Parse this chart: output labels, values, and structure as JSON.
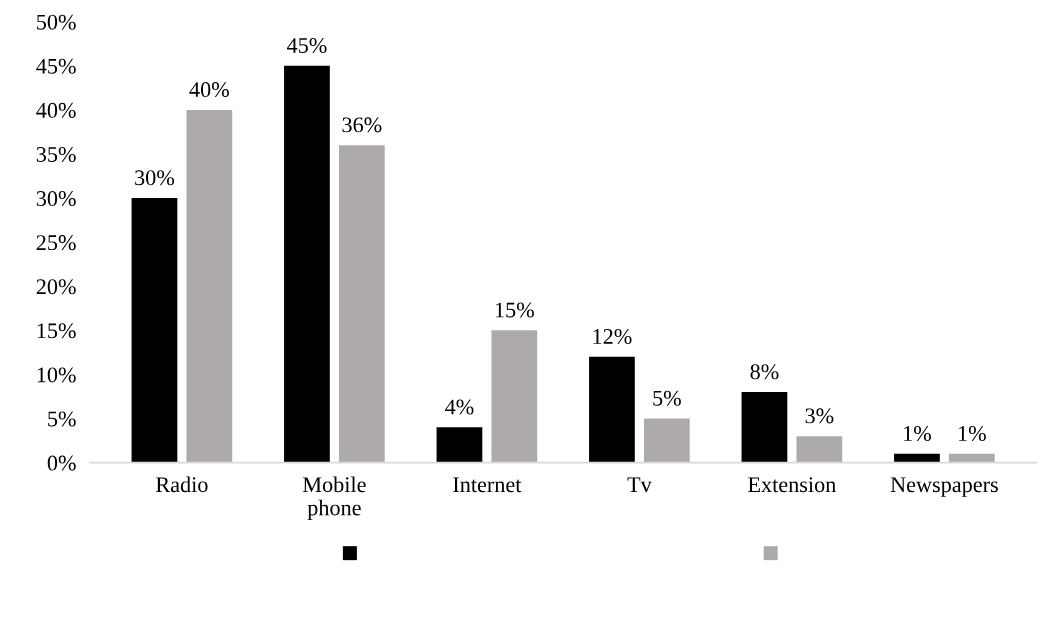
{
  "chart_data": {
    "type": "bar",
    "categories": [
      "Radio",
      "Mobile\nphone",
      "Internet",
      "Tv",
      "Extension",
      "Newspapers"
    ],
    "series": [
      {
        "color": "#000000",
        "values": [
          30,
          45,
          4,
          12,
          8,
          1
        ],
        "value_labels": [
          "30%",
          "45%",
          "4%",
          "12%",
          "8%",
          "1%"
        ]
      },
      {
        "color": "#aeaaaa",
        "values": [
          40,
          36,
          15,
          5,
          3,
          1
        ],
        "value_labels": [
          "40%",
          "36%",
          "15%",
          "5%",
          "3%",
          "1%"
        ]
      }
    ],
    "ylim": [
      0,
      50
    ],
    "yticks": [
      {
        "value": 0,
        "label": "0%"
      },
      {
        "value": 5,
        "label": "5%"
      },
      {
        "value": 10,
        "label": "10%"
      },
      {
        "value": 15,
        "label": "15%"
      },
      {
        "value": 20,
        "label": "20%"
      },
      {
        "value": 25,
        "label": "25%"
      },
      {
        "value": 30,
        "label": "30%"
      },
      {
        "value": 35,
        "label": "35%"
      },
      {
        "value": 40,
        "label": "40%"
      },
      {
        "value": 45,
        "label": "45%"
      },
      {
        "value": 50,
        "label": "50%"
      }
    ],
    "grid": false
  }
}
